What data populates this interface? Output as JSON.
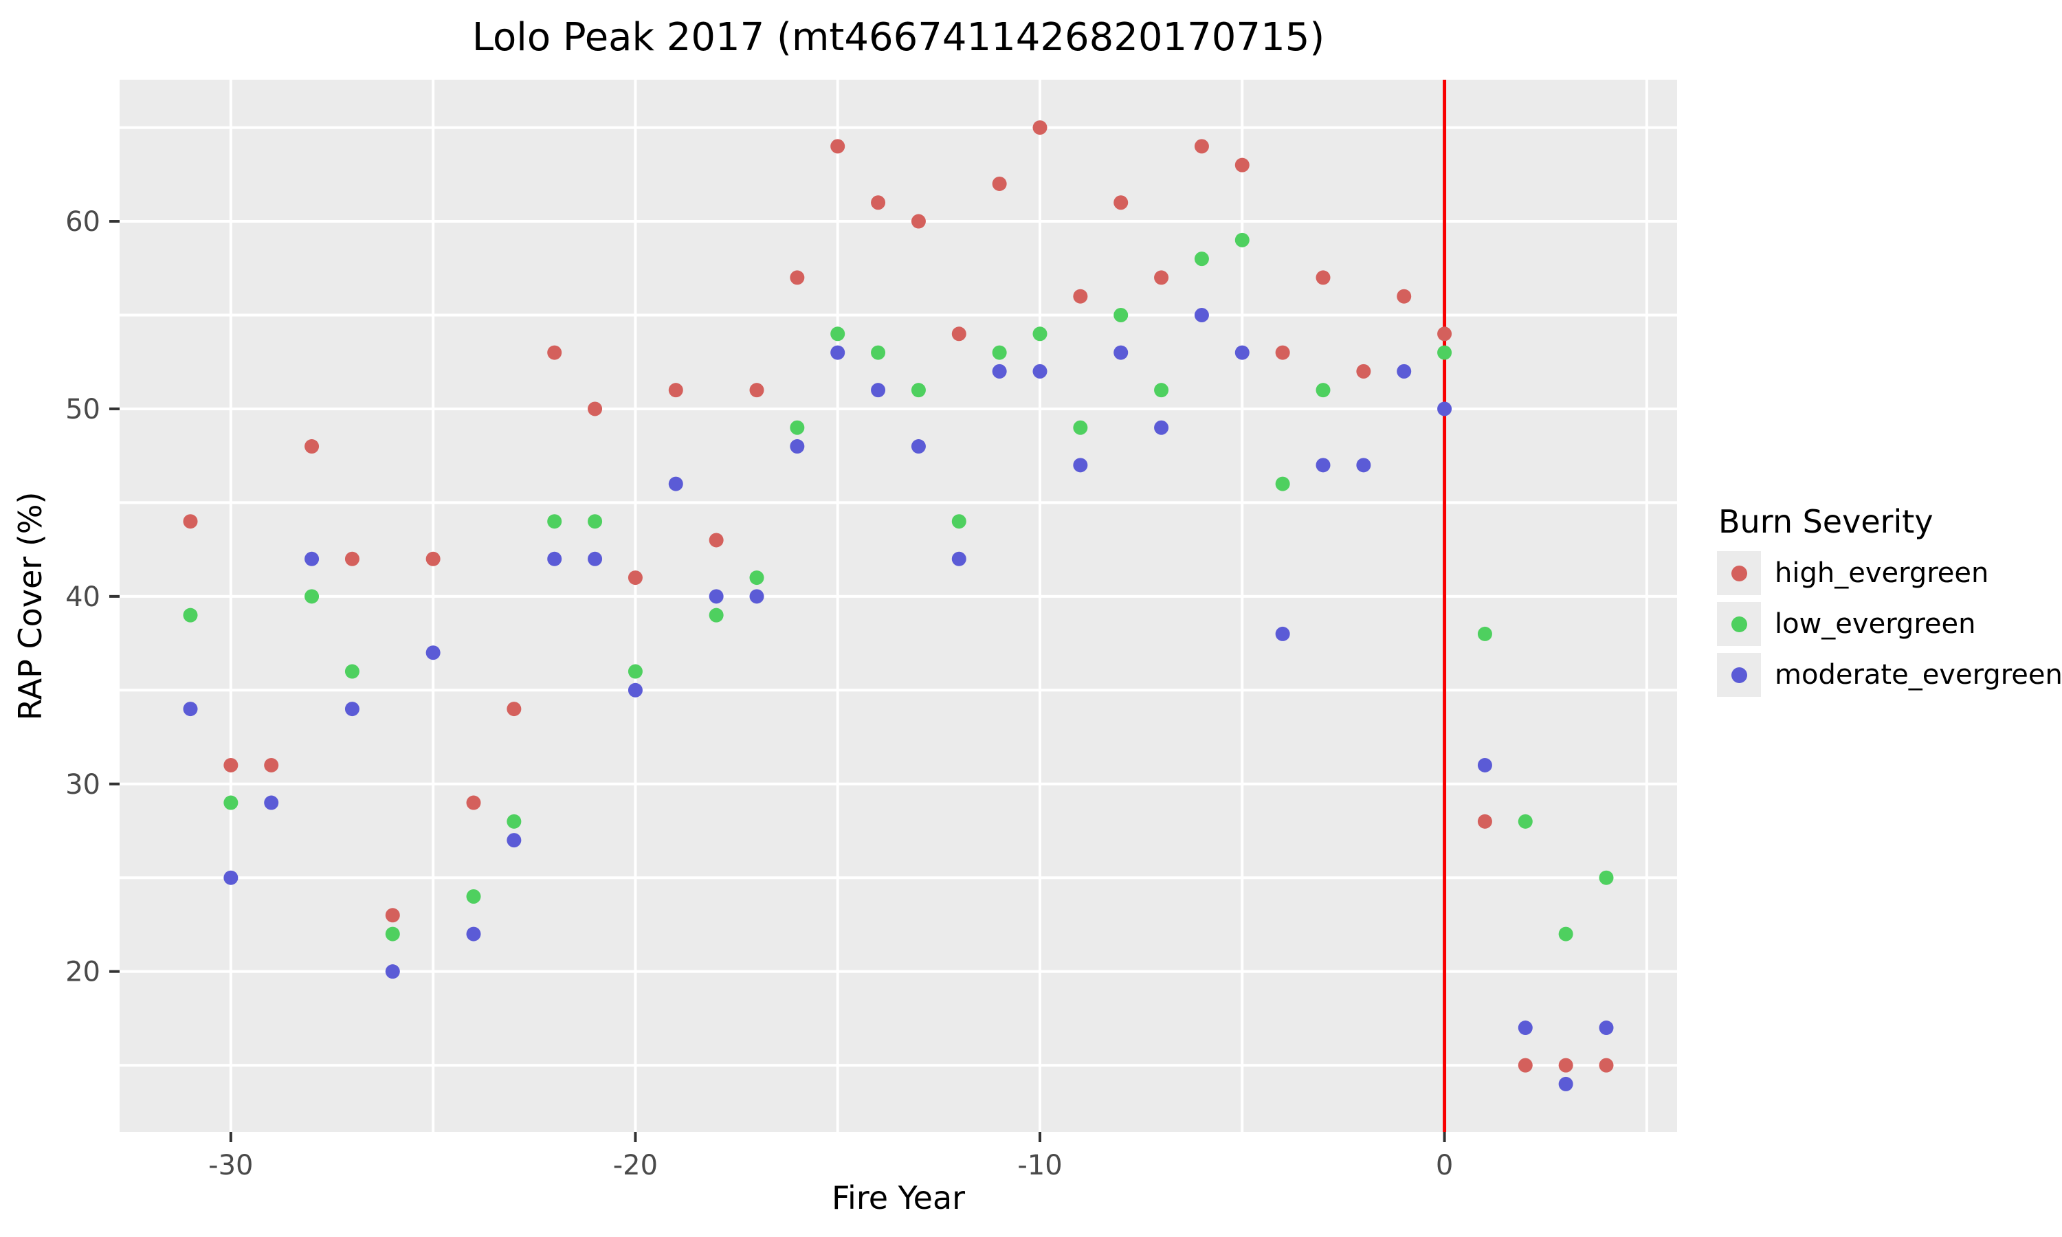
{
  "title": "Lolo Peak 2017 (mt4667411426820170715)",
  "chart_data": {
    "type": "scatter",
    "title": "Lolo Peak 2017 (mt4667411426820170715)",
    "xlabel": "Fire Year",
    "ylabel": "RAP Cover (%)",
    "legend_title": "Burn Severity",
    "legend_position": "right",
    "grid": "on",
    "panel_bg": "#ebebeb",
    "grid_color": "#ffffff",
    "tick_label_color": "#4a4a4a",
    "tick_mark_color": "#333333",
    "xlim": [
      -32.75,
      5.75
    ],
    "ylim": [
      11.45,
      67.55
    ],
    "x_ticks": [
      -30,
      -20,
      -10,
      0
    ],
    "x_minor_ticks": [
      -25,
      -15,
      -5,
      5
    ],
    "y_ticks": [
      20,
      30,
      40,
      50,
      60
    ],
    "y_minor_ticks": [
      15,
      25,
      35,
      45,
      55,
      65
    ],
    "vline_x": 0,
    "vline_color": "#f80000",
    "point_radius": 10.5,
    "series": [
      {
        "name": "high_evergreen",
        "color": "#d4605c",
        "points": [
          [
            -31,
            44
          ],
          [
            -30,
            31
          ],
          [
            -29,
            31
          ],
          [
            -28,
            48
          ],
          [
            -27,
            42
          ],
          [
            -26,
            23
          ],
          [
            -25,
            42
          ],
          [
            -24,
            29
          ],
          [
            -23,
            34
          ],
          [
            -22,
            53
          ],
          [
            -21,
            50
          ],
          [
            -20,
            41
          ],
          [
            -19,
            51
          ],
          [
            -18,
            43
          ],
          [
            -17,
            51
          ],
          [
            -16,
            57
          ],
          [
            -15,
            64
          ],
          [
            -14,
            61
          ],
          [
            -13,
            60
          ],
          [
            -12,
            54
          ],
          [
            -11,
            62
          ],
          [
            -10,
            65
          ],
          [
            -9,
            56
          ],
          [
            -8,
            61
          ],
          [
            -7,
            57
          ],
          [
            -6,
            64
          ],
          [
            -5,
            63
          ],
          [
            -4,
            53
          ],
          [
            -3,
            57
          ],
          [
            -2,
            52
          ],
          [
            -1,
            56
          ],
          [
            0,
            54
          ],
          [
            1,
            28
          ],
          [
            2,
            15
          ],
          [
            3,
            15
          ],
          [
            4,
            15
          ]
        ]
      },
      {
        "name": "low_evergreen",
        "color": "#4ed05f",
        "points": [
          [
            -31,
            39
          ],
          [
            -30,
            29
          ],
          [
            -28,
            40
          ],
          [
            -27,
            36
          ],
          [
            -26,
            22
          ],
          [
            -24,
            24
          ],
          [
            -23,
            28
          ],
          [
            -22,
            44
          ],
          [
            -21,
            44
          ],
          [
            -20,
            36
          ],
          [
            -18,
            39
          ],
          [
            -17,
            41
          ],
          [
            -16,
            49
          ],
          [
            -15,
            54
          ],
          [
            -14,
            53
          ],
          [
            -13,
            51
          ],
          [
            -12,
            44
          ],
          [
            -11,
            53
          ],
          [
            -10,
            54
          ],
          [
            -9,
            49
          ],
          [
            -8,
            55
          ],
          [
            -7,
            51
          ],
          [
            -6,
            58
          ],
          [
            -5,
            59
          ],
          [
            -4,
            46
          ],
          [
            -3,
            51
          ],
          [
            0,
            53
          ],
          [
            1,
            38
          ],
          [
            2,
            28
          ],
          [
            3,
            22
          ],
          [
            4,
            25
          ]
        ]
      },
      {
        "name": "moderate_evergreen",
        "color": "#5b5bd6",
        "points": [
          [
            -31,
            34
          ],
          [
            -30,
            25
          ],
          [
            -29,
            29
          ],
          [
            -28,
            42
          ],
          [
            -27,
            34
          ],
          [
            -26,
            20
          ],
          [
            -25,
            37
          ],
          [
            -24,
            22
          ],
          [
            -23,
            27
          ],
          [
            -22,
            42
          ],
          [
            -21,
            42
          ],
          [
            -20,
            35
          ],
          [
            -19,
            46
          ],
          [
            -18,
            40
          ],
          [
            -17,
            40
          ],
          [
            -16,
            48
          ],
          [
            -15,
            53
          ],
          [
            -14,
            51
          ],
          [
            -13,
            48
          ],
          [
            -12,
            42
          ],
          [
            -11,
            52
          ],
          [
            -10,
            52
          ],
          [
            -9,
            47
          ],
          [
            -8,
            53
          ],
          [
            -7,
            49
          ],
          [
            -6,
            55
          ],
          [
            -5,
            53
          ],
          [
            -4,
            38
          ],
          [
            -3,
            47
          ],
          [
            -2,
            47
          ],
          [
            -1,
            52
          ],
          [
            0,
            50
          ],
          [
            1,
            31
          ],
          [
            2,
            17
          ],
          [
            3,
            14
          ],
          [
            4,
            17
          ]
        ]
      }
    ]
  }
}
